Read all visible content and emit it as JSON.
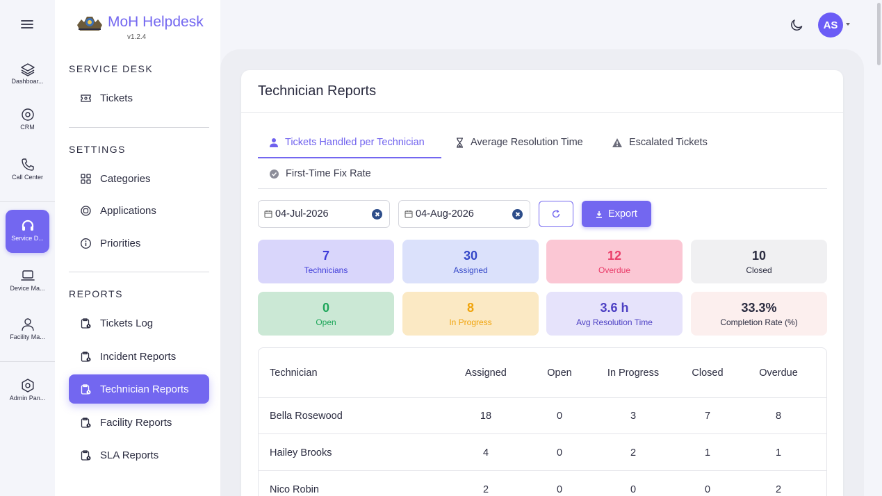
{
  "colors": {
    "accent": "#7367f0"
  },
  "rail": {
    "items": [
      {
        "label": "Dashboar...",
        "icon": "layers-icon"
      },
      {
        "label": "CRM",
        "icon": "crm-icon"
      },
      {
        "label": "Call Center",
        "icon": "phone-icon"
      },
      {
        "label": "Service D...",
        "icon": "headset-icon",
        "active": true
      },
      {
        "label": "Device Ma...",
        "icon": "laptop-icon"
      },
      {
        "label": "Facility Ma...",
        "icon": "user-icon"
      },
      {
        "label": "Admin Pan...",
        "icon": "settings-icon"
      }
    ]
  },
  "brand": {
    "title": "MoH Helpdesk",
    "version": "v1.2.4"
  },
  "sidebar": {
    "sections": [
      {
        "heading": "SERVICE DESK",
        "items": [
          {
            "label": "Tickets",
            "icon": "ticket-icon"
          }
        ]
      },
      {
        "heading": "SETTINGS",
        "items": [
          {
            "label": "Categories",
            "icon": "grid-icon"
          },
          {
            "label": "Applications",
            "icon": "app-icon"
          },
          {
            "label": "Priorities",
            "icon": "info-icon"
          }
        ]
      },
      {
        "heading": "REPORTS",
        "items": [
          {
            "label": "Tickets Log",
            "icon": "report-icon"
          },
          {
            "label": "Incident Reports",
            "icon": "report-icon"
          },
          {
            "label": "Technician Reports",
            "icon": "report-icon",
            "active": true
          },
          {
            "label": "Facility Reports",
            "icon": "report-icon"
          },
          {
            "label": "SLA Reports",
            "icon": "report-icon"
          }
        ]
      }
    ]
  },
  "user": {
    "initials": "AS"
  },
  "page": {
    "title": "Technician Reports"
  },
  "tabs": [
    {
      "label": "Tickets Handled per Technician",
      "icon": "technician-icon",
      "active": true
    },
    {
      "label": "Average Resolution Time",
      "icon": "hourglass-icon"
    },
    {
      "label": "Escalated Tickets",
      "icon": "warning-icon"
    },
    {
      "label": "First-Time Fix Rate",
      "icon": "check-circle-icon"
    }
  ],
  "filters": {
    "start_date": "04-Jul-2026",
    "end_date": "04-Aug-2026",
    "export_label": "Export"
  },
  "stats": [
    {
      "value": "7",
      "label": "Technicians",
      "bg": "#d9d6fb",
      "fg": "#3d3ad9"
    },
    {
      "value": "30",
      "label": "Assigned",
      "bg": "#dbe1fb",
      "fg": "#3447c8"
    },
    {
      "value": "12",
      "label": "Overdue",
      "bg": "#fbc7d4",
      "fg": "#ea3d6a"
    },
    {
      "value": "10",
      "label": "Closed",
      "bg": "#f0f0f2",
      "fg": "#2b2c40"
    },
    {
      "value": "0",
      "label": "Open",
      "bg": "#cbe8d5",
      "fg": "#1ea65a"
    },
    {
      "value": "8",
      "label": "In Progress",
      "bg": "#fbe9c4",
      "fg": "#f0a30a"
    },
    {
      "value": "3.6 h",
      "label": "Avg Resolution Time",
      "bg": "#e6e3fb",
      "fg": "#4c3fc3"
    },
    {
      "value": "33.3%",
      "label": "Completion Rate (%)",
      "bg": "#fcefee",
      "fg": "#2b2c40"
    }
  ],
  "table": {
    "columns": [
      "Technician",
      "Assigned",
      "Open",
      "In Progress",
      "Closed",
      "Overdue"
    ],
    "rows": [
      [
        "Bella Rosewood",
        "18",
        "0",
        "3",
        "7",
        "8"
      ],
      [
        "Hailey Brooks",
        "4",
        "0",
        "2",
        "1",
        "1"
      ],
      [
        "Nico Robin",
        "2",
        "0",
        "0",
        "0",
        "2"
      ]
    ]
  }
}
